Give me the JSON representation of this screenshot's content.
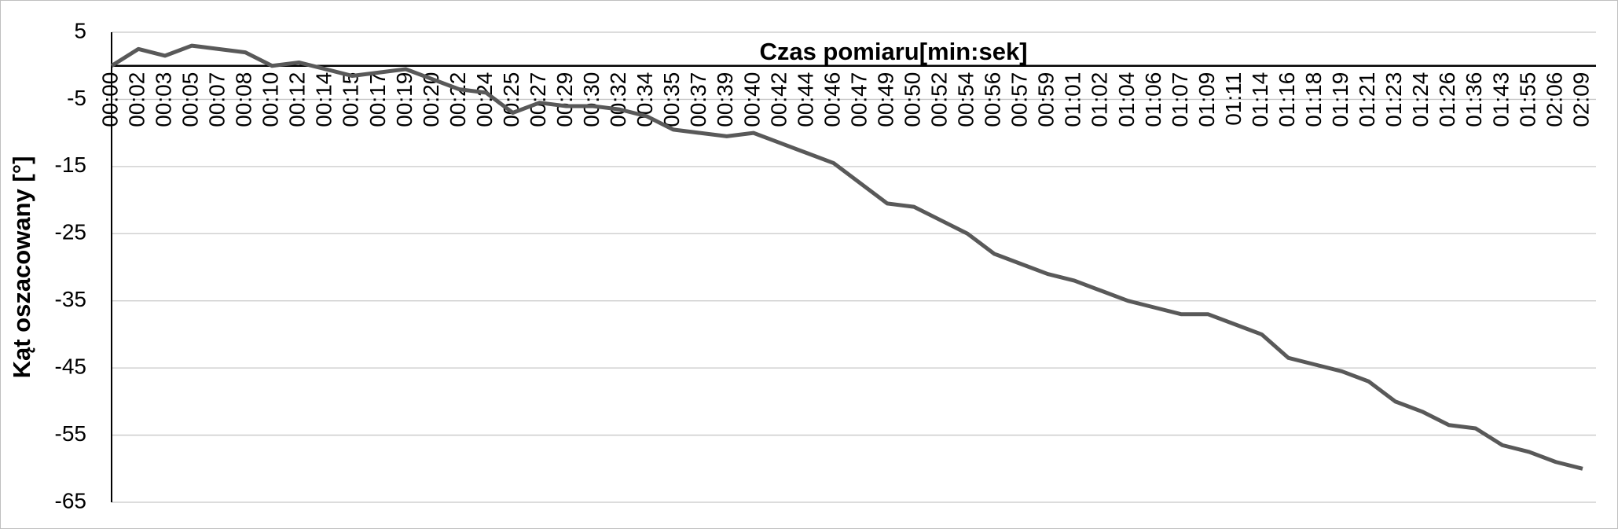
{
  "chart_data": {
    "type": "line",
    "x_label": "Czas pomiaru[min:sek]",
    "y_label": "Kąt oszacowany  [°]",
    "categories": [
      "00:00",
      "00:02",
      "00:03",
      "00:05",
      "00:07",
      "00:08",
      "00:10",
      "00:12",
      "00:14",
      "00:15",
      "00:17",
      "00:19",
      "00:20",
      "00:22",
      "00:24",
      "00:25",
      "00:27",
      "00:29",
      "00:30",
      "00:32",
      "00:34",
      "00:35",
      "00:37",
      "00:39",
      "00:40",
      "00:42",
      "00:44",
      "00:46",
      "00:47",
      "00:49",
      "00:50",
      "00:52",
      "00:54",
      "00:56",
      "00:57",
      "00:59",
      "01:01",
      "01:02",
      "01:04",
      "01:06",
      "01:07",
      "01:09",
      "01:11",
      "01:14",
      "01:16",
      "01:18",
      "01:19",
      "01:21",
      "01:23",
      "01:24",
      "01:26",
      "01:36",
      "01:43",
      "01:55",
      "02:06",
      "02:09"
    ],
    "values": [
      0,
      2.5,
      1.5,
      3,
      2.5,
      2,
      0,
      0.5,
      -0.5,
      -1.5,
      -1,
      -0.5,
      -2,
      -3.5,
      -4,
      -7,
      -5.5,
      -6,
      -6,
      -6.5,
      -7.5,
      -9.5,
      -10,
      -10.5,
      -10,
      -11.5,
      -13,
      -14.5,
      -17.5,
      -20.5,
      -21,
      -23,
      -25,
      -28,
      -29.5,
      -31,
      -32,
      -33.5,
      -35,
      -36,
      -37,
      -37,
      -38.5,
      -40,
      -43.5,
      -44.5,
      -45.5,
      -47,
      -50,
      -51.5,
      -53.5,
      -54,
      -56.5,
      -57.5,
      -59,
      -60
    ],
    "color": "#595959",
    "ylim": [
      -65,
      5
    ],
    "yticks": [
      5,
      -5,
      -15,
      -25,
      -35,
      -45,
      -55,
      -65
    ],
    "grid": true
  }
}
